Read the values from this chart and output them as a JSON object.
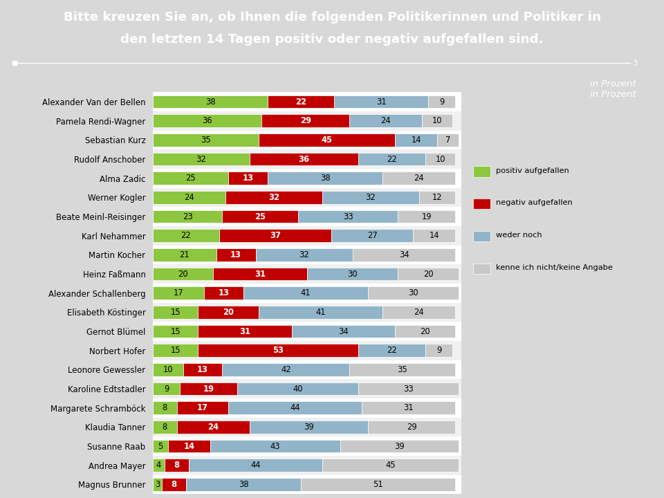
{
  "title_line1": "Bitte kreuzen Sie an, ob Ihnen die folgenden Politikerinnen und Politiker in",
  "title_line2": "den letzten 14 Tagen positiv oder negativ aufgefallen sind.",
  "subtitle": "in Prozent",
  "header_bg": "#c00000",
  "politicians": [
    "Alexander Van der Bellen",
    "Pamela Rendi-Wagner",
    "Sebastian Kurz",
    "Rudolf Anschober",
    "Alma Zadic",
    "Werner Kogler",
    "Beate Meinl-Reisinger",
    "Karl Nehammer",
    "Martin Kocher",
    "Heinz Faßmann",
    "Alexander Schallenberg",
    "Elisabeth Köstinger",
    "Gernot Blümel",
    "Norbert Hofer",
    "Leonore Gewessler",
    "Karoline Edtstadler",
    "Margarete Schramböck",
    "Klaudia Tanner",
    "Susanne Raab",
    "Andrea Mayer",
    "Magnus Brunner"
  ],
  "positiv": [
    38,
    36,
    35,
    32,
    25,
    24,
    23,
    22,
    21,
    20,
    17,
    15,
    15,
    15,
    10,
    9,
    8,
    8,
    5,
    4,
    3
  ],
  "negativ": [
    22,
    29,
    45,
    36,
    13,
    32,
    25,
    37,
    13,
    31,
    13,
    20,
    31,
    53,
    13,
    19,
    17,
    24,
    14,
    8,
    8
  ],
  "weder": [
    31,
    24,
    14,
    22,
    38,
    32,
    33,
    27,
    32,
    30,
    41,
    41,
    34,
    22,
    42,
    40,
    44,
    39,
    43,
    44,
    38
  ],
  "keine": [
    9,
    10,
    7,
    10,
    24,
    12,
    19,
    14,
    34,
    20,
    30,
    24,
    20,
    9,
    35,
    33,
    31,
    29,
    39,
    45,
    51
  ],
  "color_positiv": "#8dc63f",
  "color_negativ": "#c00000",
  "color_weder": "#92b4c8",
  "color_keine": "#c8c8c8",
  "legend_labels": [
    "positiv aufgefallen",
    "negativ aufgefallen",
    "weder noch",
    "kenne ich nicht/keine Angabe"
  ],
  "bar_height": 0.68,
  "fig_bg": "#d8d8d8",
  "chart_bg": "#ffffff",
  "scale_line_value": "3"
}
